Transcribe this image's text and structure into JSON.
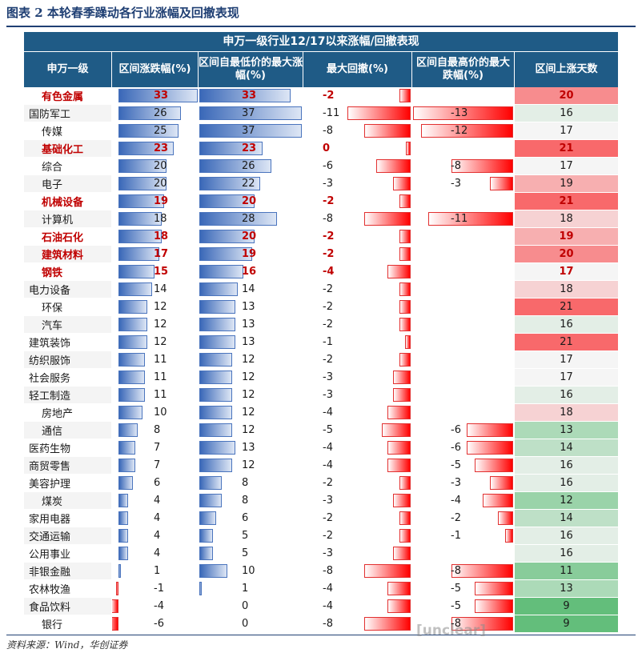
{
  "figure": {
    "title": "图表 2 本轮春季躁动各行业涨幅及回撤表现",
    "source": "资料来源：Wind，华创证券",
    "watermark": "[unclear]"
  },
  "chart_data": {
    "type": "table",
    "title": "申万一级行业12/17以来涨幅/回撤表现",
    "columns": [
      "申万一级",
      "区间涨跌幅(%)",
      "区间自最低价的最大涨幅(%)",
      "最大回撤(%)",
      "区间自最高价的最大跌幅(%)",
      "区间上涨天数"
    ],
    "rows": [
      {
        "name": "有色金属",
        "highlight": true,
        "change": 33,
        "max_rise": 33,
        "max_drawdown": -2,
        "max_fall": null,
        "up_days": 20
      },
      {
        "name": "国防军工",
        "highlight": false,
        "change": 26,
        "max_rise": 37,
        "max_drawdown": -11,
        "max_fall": -13,
        "up_days": 16
      },
      {
        "name": "传媒",
        "highlight": false,
        "change": 25,
        "max_rise": 37,
        "max_drawdown": -8,
        "max_fall": -12,
        "up_days": 17
      },
      {
        "name": "基础化工",
        "highlight": true,
        "change": 23,
        "max_rise": 23,
        "max_drawdown": 0,
        "max_fall": null,
        "up_days": 21
      },
      {
        "name": "综合",
        "highlight": false,
        "change": 20,
        "max_rise": 26,
        "max_drawdown": -6,
        "max_fall": -8,
        "up_days": 17
      },
      {
        "name": "电子",
        "highlight": false,
        "change": 20,
        "max_rise": 22,
        "max_drawdown": -3,
        "max_fall": -3,
        "up_days": 19
      },
      {
        "name": "机械设备",
        "highlight": true,
        "change": 19,
        "max_rise": 20,
        "max_drawdown": -2,
        "max_fall": null,
        "up_days": 21
      },
      {
        "name": "计算机",
        "highlight": false,
        "change": 18,
        "max_rise": 28,
        "max_drawdown": -8,
        "max_fall": -11,
        "up_days": 18
      },
      {
        "name": "石油石化",
        "highlight": true,
        "change": 18,
        "max_rise": 20,
        "max_drawdown": -2,
        "max_fall": null,
        "up_days": 19
      },
      {
        "name": "建筑材料",
        "highlight": true,
        "change": 17,
        "max_rise": 19,
        "max_drawdown": -2,
        "max_fall": null,
        "up_days": 20
      },
      {
        "name": "钢铁",
        "highlight": true,
        "change": 15,
        "max_rise": 16,
        "max_drawdown": -4,
        "max_fall": null,
        "up_days": 17
      },
      {
        "name": "电力设备",
        "highlight": false,
        "change": 14,
        "max_rise": 14,
        "max_drawdown": -2,
        "max_fall": null,
        "up_days": 18
      },
      {
        "name": "环保",
        "highlight": false,
        "change": 12,
        "max_rise": 13,
        "max_drawdown": -2,
        "max_fall": null,
        "up_days": 21
      },
      {
        "name": "汽车",
        "highlight": false,
        "change": 12,
        "max_rise": 13,
        "max_drawdown": -2,
        "max_fall": null,
        "up_days": 16
      },
      {
        "name": "建筑装饰",
        "highlight": false,
        "change": 12,
        "max_rise": 13,
        "max_drawdown": -1,
        "max_fall": null,
        "up_days": 21
      },
      {
        "name": "纺织服饰",
        "highlight": false,
        "change": 11,
        "max_rise": 12,
        "max_drawdown": -2,
        "max_fall": null,
        "up_days": 17
      },
      {
        "name": "社会服务",
        "highlight": false,
        "change": 11,
        "max_rise": 12,
        "max_drawdown": -3,
        "max_fall": null,
        "up_days": 17
      },
      {
        "name": "轻工制造",
        "highlight": false,
        "change": 11,
        "max_rise": 12,
        "max_drawdown": -3,
        "max_fall": null,
        "up_days": 16
      },
      {
        "name": "房地产",
        "highlight": false,
        "change": 10,
        "max_rise": 12,
        "max_drawdown": -4,
        "max_fall": null,
        "up_days": 18
      },
      {
        "name": "通信",
        "highlight": false,
        "change": 8,
        "max_rise": 12,
        "max_drawdown": -5,
        "max_fall": -6,
        "up_days": 13
      },
      {
        "name": "医药生物",
        "highlight": false,
        "change": 7,
        "max_rise": 13,
        "max_drawdown": -4,
        "max_fall": -6,
        "up_days": 14
      },
      {
        "name": "商贸零售",
        "highlight": false,
        "change": 7,
        "max_rise": 12,
        "max_drawdown": -4,
        "max_fall": -5,
        "up_days": 16
      },
      {
        "name": "美容护理",
        "highlight": false,
        "change": 6,
        "max_rise": 8,
        "max_drawdown": -2,
        "max_fall": -3,
        "up_days": 16
      },
      {
        "name": "煤炭",
        "highlight": false,
        "change": 4,
        "max_rise": 8,
        "max_drawdown": -3,
        "max_fall": -4,
        "up_days": 12
      },
      {
        "name": "家用电器",
        "highlight": false,
        "change": 4,
        "max_rise": 6,
        "max_drawdown": -2,
        "max_fall": -2,
        "up_days": 14
      },
      {
        "name": "交通运输",
        "highlight": false,
        "change": 4,
        "max_rise": 5,
        "max_drawdown": -2,
        "max_fall": -1,
        "up_days": 16
      },
      {
        "name": "公用事业",
        "highlight": false,
        "change": 4,
        "max_rise": 5,
        "max_drawdown": -3,
        "max_fall": null,
        "up_days": 16
      },
      {
        "name": "非银金融",
        "highlight": false,
        "change": 1,
        "max_rise": 10,
        "max_drawdown": -8,
        "max_fall": -8,
        "up_days": 11
      },
      {
        "name": "农林牧渔",
        "highlight": false,
        "change": -1,
        "max_rise": 1,
        "max_drawdown": -4,
        "max_fall": -5,
        "up_days": 13
      },
      {
        "name": "食品饮料",
        "highlight": false,
        "change": -4,
        "max_rise": 0,
        "max_drawdown": -4,
        "max_fall": -5,
        "up_days": 9
      },
      {
        "name": "银行",
        "highlight": false,
        "change": -6,
        "max_rise": 0,
        "max_drawdown": -8,
        "max_fall": -8,
        "up_days": 9
      }
    ],
    "colors": {
      "header_bg": "#1f5b86",
      "positive_bar": "#3a68b8",
      "negative_bar": "#ff0000",
      "highlight_text": "#c00000",
      "days_high": "#f8696b",
      "days_low": "#63be7b"
    }
  }
}
